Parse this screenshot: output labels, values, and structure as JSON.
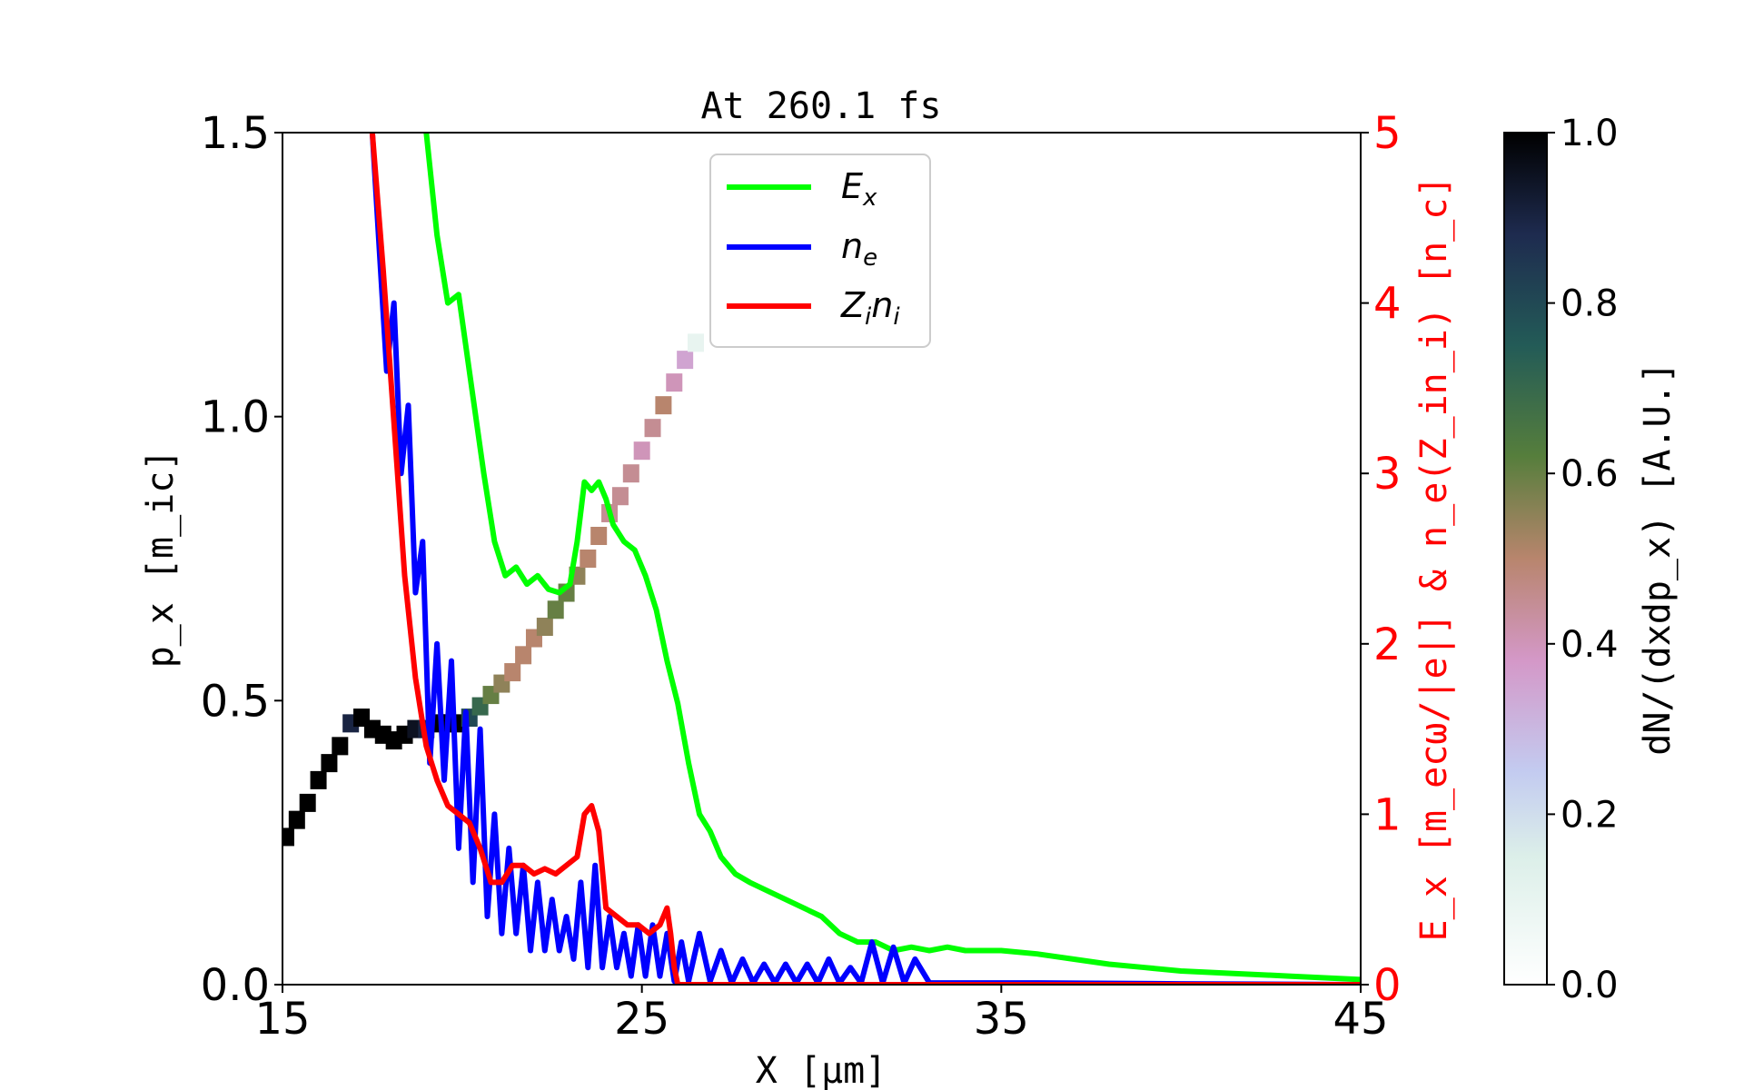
{
  "chart_data": {
    "type": "line",
    "title": "At 260.1 fs",
    "xlabel": "X [μm]",
    "ylabel": "p_x [m_ic]",
    "y2label": "E_x [m_ecω/|e|] & n_e(Z_in_i) [n_c]",
    "colorbar_label": "dN/(dxdp_x) [A.U.]",
    "xlim": [
      15,
      45
    ],
    "ylim": [
      0,
      1.5
    ],
    "y2lim": [
      0,
      5
    ],
    "clim": [
      0,
      1
    ],
    "x_ticks": [
      "15",
      "25",
      "35",
      "45"
    ],
    "y_ticks": [
      "0.0",
      "0.5",
      "1.0",
      "1.5"
    ],
    "y2_ticks": [
      "0",
      "1",
      "2",
      "3",
      "4",
      "5"
    ],
    "colorbar_ticks": [
      "0.0",
      "0.2",
      "0.4",
      "0.6",
      "0.8",
      "1.0"
    ],
    "legend_position": "top-center",
    "grid": false,
    "series": [
      {
        "name": "E_x",
        "color": "#00ff00",
        "axis": "right",
        "x": [
          19.0,
          19.3,
          19.6,
          19.9,
          20.1,
          20.3,
          20.6,
          20.9,
          21.2,
          21.5,
          21.8,
          22.1,
          22.4,
          22.7,
          23.0,
          23.2,
          23.4,
          23.6,
          23.8,
          24.0,
          24.2,
          24.5,
          24.8,
          25.1,
          25.4,
          25.7,
          26.0,
          26.3,
          26.6,
          26.9,
          27.2,
          27.6,
          28.0,
          28.5,
          29.0,
          29.5,
          30.0,
          30.5,
          31.0,
          31.5,
          32.0,
          32.5,
          33.0,
          33.5,
          34.0,
          34.5,
          35.0,
          36.0,
          37.0,
          38.0,
          39.0,
          40.0,
          41.0,
          42.0,
          43.0,
          44.0,
          45.0
        ],
        "values": [
          5.0,
          4.4,
          4.0,
          4.05,
          3.75,
          3.45,
          3.0,
          2.6,
          2.4,
          2.45,
          2.35,
          2.4,
          2.32,
          2.3,
          2.35,
          2.6,
          2.95,
          2.9,
          2.95,
          2.85,
          2.7,
          2.6,
          2.55,
          2.4,
          2.2,
          1.9,
          1.65,
          1.3,
          1.0,
          0.9,
          0.75,
          0.65,
          0.6,
          0.55,
          0.5,
          0.45,
          0.4,
          0.3,
          0.25,
          0.25,
          0.2,
          0.22,
          0.2,
          0.22,
          0.2,
          0.2,
          0.2,
          0.18,
          0.15,
          0.12,
          0.1,
          0.08,
          0.07,
          0.06,
          0.05,
          0.04,
          0.03
        ]
      },
      {
        "name": "n_e",
        "color": "#0000ff",
        "axis": "right",
        "x": [
          17.5,
          17.7,
          17.9,
          18.1,
          18.3,
          18.5,
          18.7,
          18.9,
          19.1,
          19.3,
          19.5,
          19.7,
          19.9,
          20.1,
          20.3,
          20.5,
          20.7,
          20.9,
          21.1,
          21.3,
          21.5,
          21.7,
          21.9,
          22.1,
          22.3,
          22.5,
          22.7,
          22.9,
          23.1,
          23.3,
          23.5,
          23.7,
          23.9,
          24.1,
          24.3,
          24.5,
          24.7,
          24.9,
          25.1,
          25.3,
          25.5,
          25.7,
          25.9,
          26.1,
          26.3,
          26.6,
          26.9,
          27.2,
          27.5,
          27.8,
          28.1,
          28.4,
          28.7,
          29.0,
          29.3,
          29.6,
          29.9,
          30.2,
          30.5,
          30.8,
          31.1,
          31.4,
          31.7,
          32.0,
          32.3,
          32.6,
          33.0,
          34.0,
          36.0,
          40.0,
          45.0
        ],
        "values": [
          5.0,
          4.3,
          3.6,
          4.0,
          3.0,
          3.4,
          2.3,
          2.6,
          1.3,
          2.0,
          1.2,
          1.9,
          0.8,
          1.6,
          0.6,
          1.5,
          0.4,
          1.0,
          0.3,
          0.8,
          0.3,
          0.7,
          0.2,
          0.6,
          0.2,
          0.5,
          0.2,
          0.4,
          0.15,
          0.6,
          0.1,
          0.7,
          0.1,
          0.4,
          0.1,
          0.3,
          0.05,
          0.35,
          0.05,
          0.35,
          0.05,
          0.3,
          0.02,
          0.25,
          0.02,
          0.3,
          0.02,
          0.2,
          0.01,
          0.15,
          0.01,
          0.12,
          0.01,
          0.12,
          0.01,
          0.12,
          0.01,
          0.15,
          0.01,
          0.1,
          0.01,
          0.25,
          0.01,
          0.22,
          0.01,
          0.15,
          0.01,
          0.01,
          0.01,
          0.005,
          0.0
        ]
      },
      {
        "name": "Z_in_i",
        "color": "#ff0000",
        "axis": "right",
        "x": [
          17.5,
          17.8,
          18.1,
          18.4,
          18.7,
          19.0,
          19.3,
          19.6,
          19.9,
          20.2,
          20.5,
          20.8,
          21.1,
          21.4,
          21.7,
          22.0,
          22.3,
          22.6,
          22.9,
          23.2,
          23.4,
          23.6,
          23.8,
          24.0,
          24.3,
          24.6,
          24.9,
          25.2,
          25.5,
          25.7,
          25.8,
          25.9,
          26.0,
          26.5,
          27.0,
          30.0,
          35.0,
          40.0,
          45.0
        ],
        "values": [
          5.0,
          4.2,
          3.3,
          2.4,
          1.8,
          1.4,
          1.2,
          1.05,
          1.0,
          0.95,
          0.8,
          0.6,
          0.6,
          0.7,
          0.7,
          0.65,
          0.68,
          0.65,
          0.7,
          0.75,
          1.0,
          1.05,
          0.9,
          0.45,
          0.4,
          0.35,
          0.35,
          0.3,
          0.35,
          0.45,
          0.3,
          0.1,
          0.0,
          0.0,
          0.0,
          0.0,
          0.0,
          0.0,
          0.0
        ]
      }
    ],
    "phase_space": {
      "description_hidden": "",
      "points": [
        {
          "x": 15.1,
          "y": 0.26,
          "v": 1.0
        },
        {
          "x": 15.4,
          "y": 0.29,
          "v": 1.0
        },
        {
          "x": 15.7,
          "y": 0.32,
          "v": 1.0
        },
        {
          "x": 16.0,
          "y": 0.36,
          "v": 1.0
        },
        {
          "x": 16.3,
          "y": 0.39,
          "v": 1.0
        },
        {
          "x": 16.6,
          "y": 0.42,
          "v": 1.0
        },
        {
          "x": 16.9,
          "y": 0.46,
          "v": 0.9
        },
        {
          "x": 17.2,
          "y": 0.47,
          "v": 1.0
        },
        {
          "x": 17.5,
          "y": 0.45,
          "v": 1.0
        },
        {
          "x": 17.8,
          "y": 0.44,
          "v": 1.0
        },
        {
          "x": 18.1,
          "y": 0.43,
          "v": 1.0
        },
        {
          "x": 18.4,
          "y": 0.44,
          "v": 1.0
        },
        {
          "x": 18.7,
          "y": 0.45,
          "v": 0.95
        },
        {
          "x": 19.0,
          "y": 0.45,
          "v": 0.9
        },
        {
          "x": 19.3,
          "y": 0.46,
          "v": 1.0
        },
        {
          "x": 19.6,
          "y": 0.46,
          "v": 1.0
        },
        {
          "x": 19.9,
          "y": 0.46,
          "v": 1.0
        },
        {
          "x": 20.2,
          "y": 0.47,
          "v": 0.8
        },
        {
          "x": 20.5,
          "y": 0.49,
          "v": 0.7
        },
        {
          "x": 20.8,
          "y": 0.51,
          "v": 0.6
        },
        {
          "x": 21.1,
          "y": 0.53,
          "v": 0.55
        },
        {
          "x": 21.4,
          "y": 0.55,
          "v": 0.5
        },
        {
          "x": 21.7,
          "y": 0.58,
          "v": 0.5
        },
        {
          "x": 22.0,
          "y": 0.61,
          "v": 0.5
        },
        {
          "x": 22.3,
          "y": 0.63,
          "v": 0.55
        },
        {
          "x": 22.6,
          "y": 0.66,
          "v": 0.6
        },
        {
          "x": 22.9,
          "y": 0.69,
          "v": 0.6
        },
        {
          "x": 23.2,
          "y": 0.72,
          "v": 0.55
        },
        {
          "x": 23.5,
          "y": 0.75,
          "v": 0.5
        },
        {
          "x": 23.8,
          "y": 0.79,
          "v": 0.5
        },
        {
          "x": 24.1,
          "y": 0.83,
          "v": 0.45
        },
        {
          "x": 24.4,
          "y": 0.86,
          "v": 0.45
        },
        {
          "x": 24.7,
          "y": 0.9,
          "v": 0.45
        },
        {
          "x": 25.0,
          "y": 0.94,
          "v": 0.4
        },
        {
          "x": 25.3,
          "y": 0.98,
          "v": 0.45
        },
        {
          "x": 25.6,
          "y": 1.02,
          "v": 0.5
        },
        {
          "x": 25.9,
          "y": 1.06,
          "v": 0.4
        },
        {
          "x": 26.2,
          "y": 1.1,
          "v": 0.35
        },
        {
          "x": 26.5,
          "y": 1.13,
          "v": 0.1
        }
      ]
    }
  },
  "legend": {
    "ex_main": "E",
    "ex_sub": "x",
    "ne_main": "n",
    "ne_sub": "e",
    "zn_main1": "Z",
    "zn_sub1": "i",
    "zn_main2": "n",
    "zn_sub2": "i"
  }
}
